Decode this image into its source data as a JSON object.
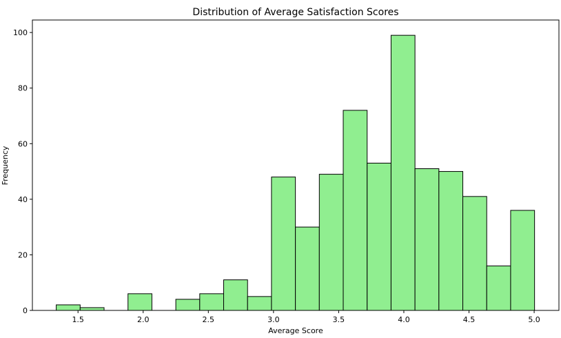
{
  "chart_data": {
    "type": "bar",
    "title": "Distribution of Average Satisfaction Scores",
    "xlabel": "Average Score",
    "ylabel": "Frequency",
    "bin_edges": [
      1.333,
      1.5165,
      1.7,
      1.8835,
      2.067,
      2.2505,
      2.434,
      2.6175,
      2.801,
      2.9845,
      3.168,
      3.3515,
      3.535,
      3.7185,
      3.902,
      4.0855,
      4.269,
      4.4525,
      4.636,
      4.8195,
      5.003
    ],
    "values": [
      2,
      1,
      0,
      6,
      0,
      4,
      6,
      11,
      5,
      48,
      30,
      49,
      72,
      53,
      99,
      51,
      50,
      41,
      16,
      36
    ],
    "xlim": [
      1.15,
      5.19
    ],
    "ylim": [
      0,
      104.5
    ],
    "x_ticks": [
      "1.5",
      "2.0",
      "2.5",
      "3.0",
      "3.5",
      "4.0",
      "4.5",
      "5.0"
    ],
    "y_ticks": [
      "0",
      "20",
      "40",
      "60",
      "80",
      "100"
    ],
    "grid": false,
    "colors": {
      "bar_fill": "#90ee90",
      "bar_edge": "#000000",
      "axis": "#000000"
    }
  }
}
